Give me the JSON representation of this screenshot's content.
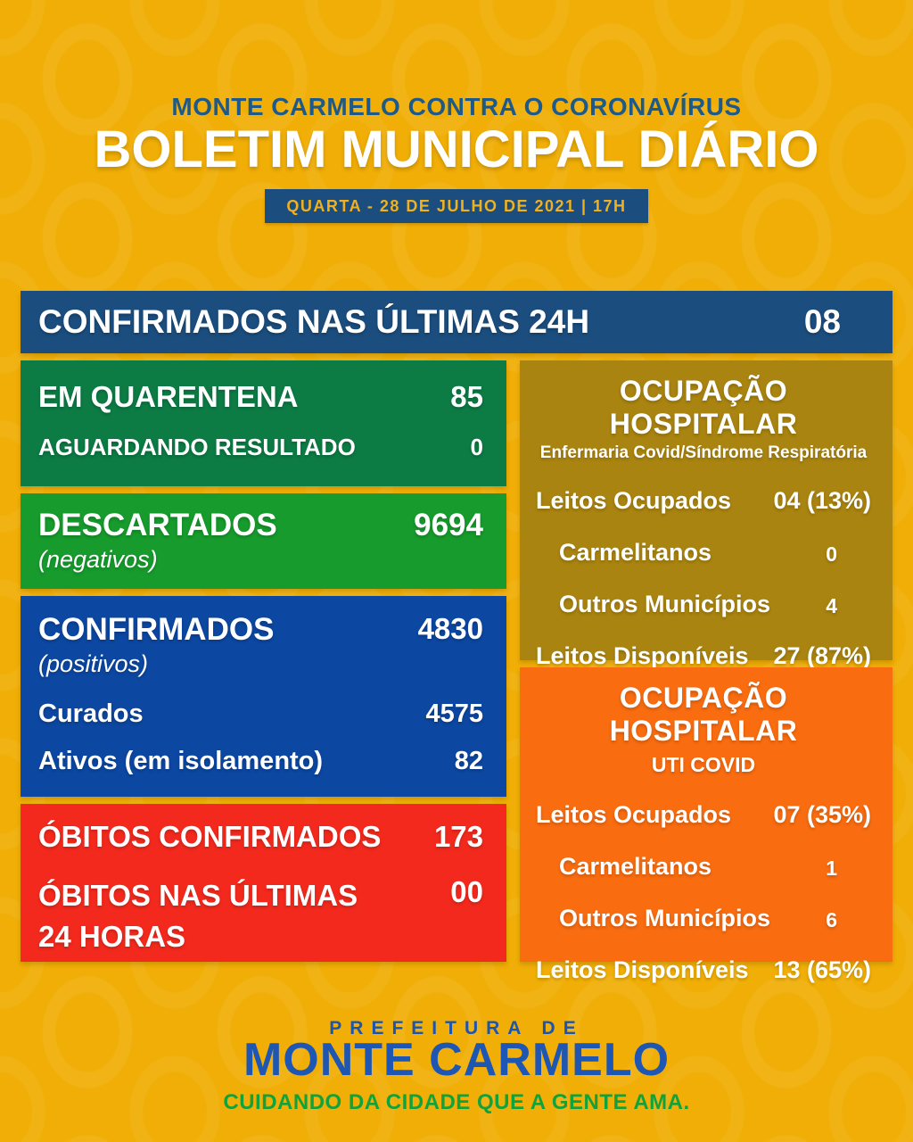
{
  "header": {
    "supertitle": "MONTE CARMELO CONTRA O CORONAVÍRUS",
    "title": "BOLETIM MUNICIPAL DIÁRIO",
    "date_banner": "QUARTA - 28 DE JULHO DE 2021 | 17H"
  },
  "summary_bar": {
    "label": "CONFIRMADOS NAS ÚLTIMAS 24H",
    "value": "08"
  },
  "left_column": {
    "quarantine_box": {
      "rows": [
        {
          "label": "EM QUARENTENA",
          "value": "85"
        },
        {
          "label": "AGUARDANDO RESULTADO",
          "value": "0"
        }
      ]
    },
    "discarded_box": {
      "label": "DESCARTADOS",
      "sublabel": "(negativos)",
      "value": "9694"
    },
    "confirmed_box": {
      "label": "CONFIRMADOS",
      "sublabel": "(positivos)",
      "value": "4830",
      "rows": [
        {
          "label": "Curados",
          "value": "4575"
        },
        {
          "label": "Ativos (em isolamento)",
          "value": "82"
        }
      ]
    },
    "deaths_box": {
      "rows": [
        {
          "label": "ÓBITOS CONFIRMADOS",
          "value": "173"
        },
        {
          "label": "ÓBITOS NAS ÚLTIMAS 24 HORAS",
          "value": "00"
        }
      ]
    }
  },
  "right_column": {
    "ward_box": {
      "title": "OCUPAÇÃO HOSPITALAR",
      "subtitle": "Enfermaria Covid/Síndrome Respiratória",
      "rows": [
        {
          "label": "Leitos Ocupados",
          "value": "04 (13%)"
        },
        {
          "label": "Carmelitanos",
          "value": "0"
        },
        {
          "label": "Outros Municípios",
          "value": "4"
        },
        {
          "label": "Leitos Disponíveis",
          "value": "27 (87%)"
        }
      ]
    },
    "icu_box": {
      "title": "OCUPAÇÃO HOSPITALAR",
      "subtitle": "UTI COVID",
      "rows": [
        {
          "label": "Leitos Ocupados",
          "value": "07 (35%)"
        },
        {
          "label": "Carmelitanos",
          "value": "1"
        },
        {
          "label": "Outros Municípios",
          "value": "6"
        },
        {
          "label": "Leitos Disponíveis",
          "value": "13 (65%)"
        }
      ]
    }
  },
  "footer": {
    "line1": "PREFEITURA DE",
    "line2": "MONTE CARMELO",
    "line3": "CUIDANDO DA CIDADE QUE A GENTE AMA."
  },
  "colors": {
    "background": "#F0AE06",
    "navy": "#1B4E7F",
    "header_blue": "#1D5A8A",
    "dark_green": "#0C7B44",
    "green": "#169B2C",
    "blue": "#0C47A1",
    "red": "#F3291D",
    "olive": "#AA8410",
    "orange": "#F96C10",
    "footer_blue": "#1E56B4",
    "footer_green": "#12A23B",
    "banner_text_yellow": "#EFB11F"
  }
}
